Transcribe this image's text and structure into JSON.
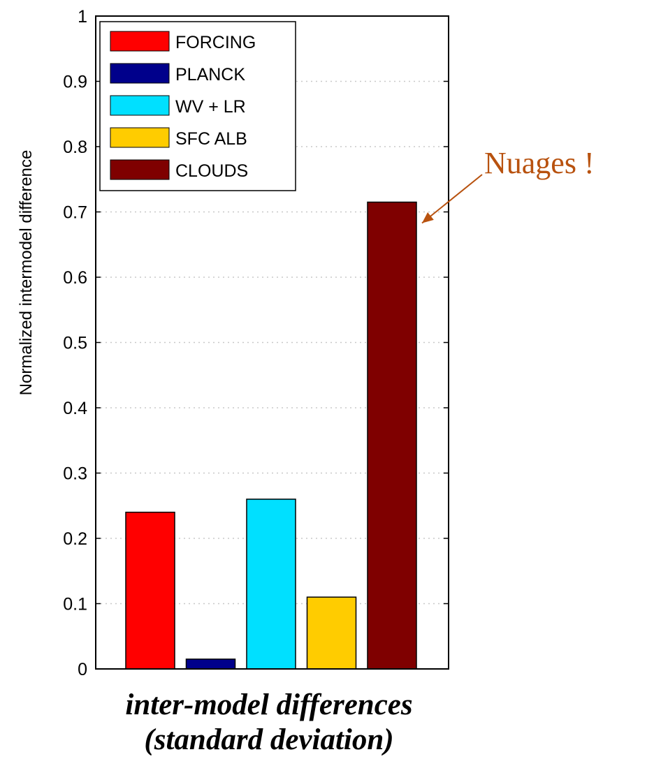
{
  "chart_data": {
    "type": "bar",
    "categories": [
      "FORCING",
      "PLANCK",
      "WV + LR",
      "SFC ALB",
      "CLOUDS"
    ],
    "values": [
      0.24,
      0.015,
      0.26,
      0.11,
      0.715
    ],
    "colors": [
      "#ff0000",
      "#00008b",
      "#00e0ff",
      "#ffcc00",
      "#7f0000"
    ],
    "ylabel": "Normalized intermodel difference",
    "ylim": [
      0,
      1
    ],
    "yticks": [
      "0",
      "0.1",
      "0.2",
      "0.3",
      "0.4",
      "0.5",
      "0.6",
      "0.7",
      "0.8",
      "0.9",
      "1"
    ],
    "grid": true,
    "legend": {
      "placement": "top-left",
      "entries": [
        "FORCING",
        "PLANCK",
        "WV + LR",
        "SFC ALB",
        "CLOUDS"
      ]
    },
    "annotation": {
      "text": "Nuages !",
      "target": "CLOUDS",
      "color": "#b8520f"
    }
  },
  "caption": {
    "line1": "inter-model differences",
    "line2": "(standard deviation)"
  }
}
